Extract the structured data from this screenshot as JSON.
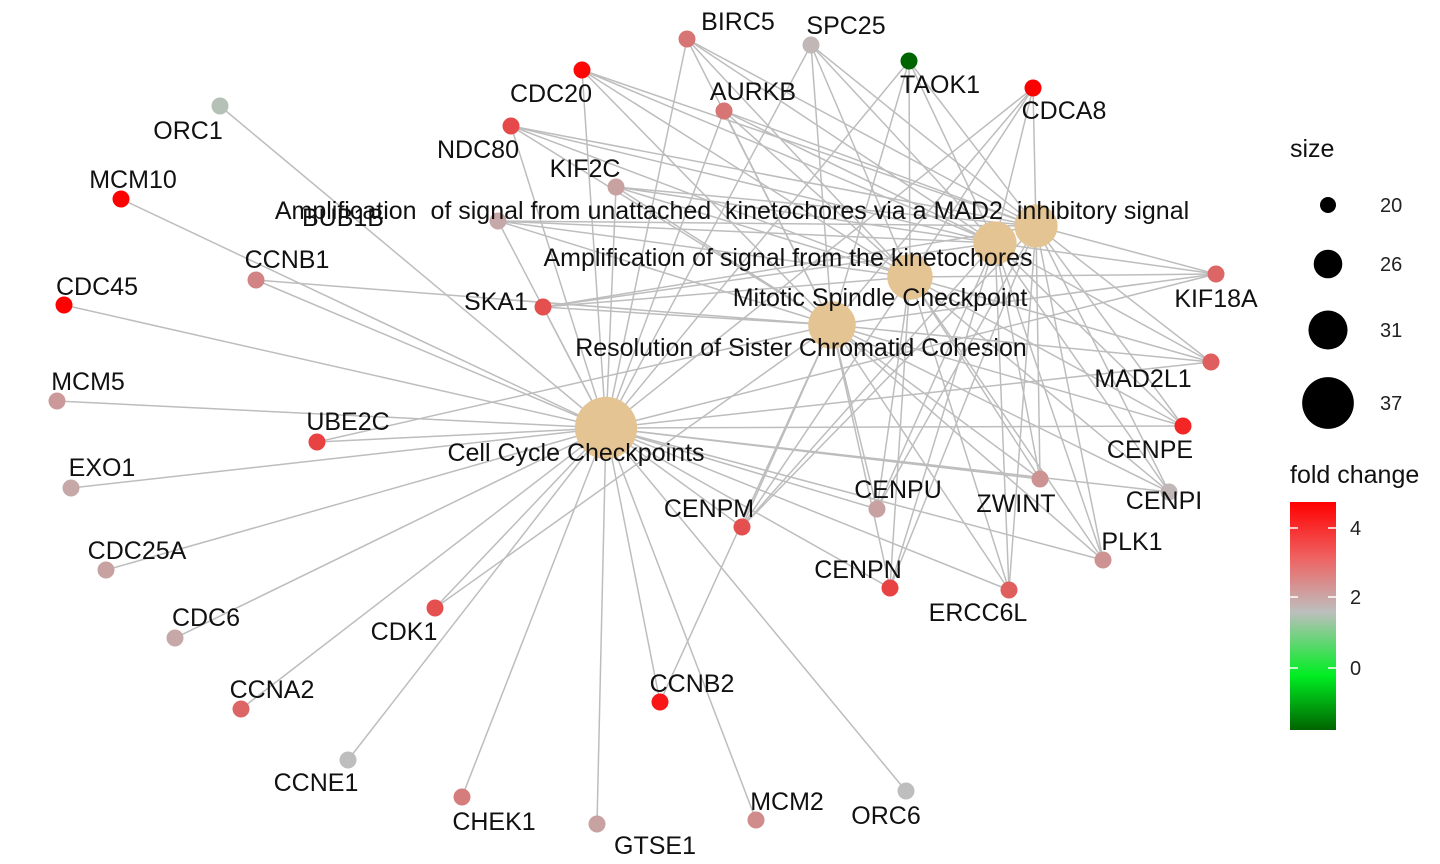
{
  "chart_data": {
    "type": "network",
    "colors": {
      "term_node": "#E5C494",
      "edge": "#BDBDBD",
      "fold_change_high": "#FF0000",
      "fold_change_mid": "#BEBEBE",
      "fold_change_zero": "#00EE22",
      "fold_change_low": "#006400"
    },
    "terms": [
      {
        "id": "t_ampunat",
        "label": "Amplification  of signal from unattached  kinetochores via a MAD2  inhibitory signal",
        "size": 33
      },
      {
        "id": "t_ampkin",
        "label": "Amplification of signal from the kinetochores",
        "size": 33
      },
      {
        "id": "t_msc",
        "label": "Mitotic Spindle Checkpoint",
        "size": 34
      },
      {
        "id": "t_rscc",
        "label": "Resolution of Sister Chromatid Cohesion",
        "size": 35
      },
      {
        "id": "t_ccc",
        "label": "Cell Cycle Checkpoints",
        "size": 42
      }
    ],
    "genes": [
      {
        "id": "BIRC5",
        "fold_change": 3.0
      },
      {
        "id": "SPC25",
        "fold_change": 2.1
      },
      {
        "id": "TAOK1",
        "fold_change": -1.8
      },
      {
        "id": "CDC20",
        "fold_change": 4.5
      },
      {
        "id": "AURKB",
        "fold_change": 3.0
      },
      {
        "id": "CDCA8",
        "fold_change": 4.6
      },
      {
        "id": "ORC1",
        "fold_change": 1.9
      },
      {
        "id": "NDC80",
        "fold_change": 3.6
      },
      {
        "id": "KIF2C",
        "fold_change": 2.4
      },
      {
        "id": "MCM10",
        "fold_change": 4.6
      },
      {
        "id": "BUB1B",
        "fold_change": 2.3
      },
      {
        "id": "CCNB1",
        "fold_change": 2.8
      },
      {
        "id": "KIF18A",
        "fold_change": 3.2
      },
      {
        "id": "CDC45",
        "fold_change": 4.8
      },
      {
        "id": "SKA1",
        "fold_change": 3.5
      },
      {
        "id": "MAD2L1",
        "fold_change": 3.3
      },
      {
        "id": "MCM5",
        "fold_change": 2.5
      },
      {
        "id": "UBE2C",
        "fold_change": 3.7
      },
      {
        "id": "CENPE",
        "fold_change": 4.1
      },
      {
        "id": "EXO1",
        "fold_change": 2.3
      },
      {
        "id": "CENPU",
        "fold_change": 2.4
      },
      {
        "id": "ZWINT",
        "fold_change": 2.6
      },
      {
        "id": "CENPI",
        "fold_change": 2.1
      },
      {
        "id": "CENPM",
        "fold_change": 3.5
      },
      {
        "id": "CDC25A",
        "fold_change": 2.4
      },
      {
        "id": "PLK1",
        "fold_change": 2.6
      },
      {
        "id": "CENPN",
        "fold_change": 3.7
      },
      {
        "id": "CDC6",
        "fold_change": 2.3
      },
      {
        "id": "ERCC6L",
        "fold_change": 3.3
      },
      {
        "id": "CDK1",
        "fold_change": 3.5
      },
      {
        "id": "CCNA2",
        "fold_change": 3.2
      },
      {
        "id": "CCNB2",
        "fold_change": 4.3
      },
      {
        "id": "CCNE1",
        "fold_change": 2.0
      },
      {
        "id": "CHEK1",
        "fold_change": 2.9
      },
      {
        "id": "MCM2",
        "fold_change": 2.7
      },
      {
        "id": "ORC6",
        "fold_change": 2.0
      },
      {
        "id": "GTSE1",
        "fold_change": 2.4
      }
    ],
    "edges": [
      [
        "t_ccc",
        "BIRC5"
      ],
      [
        "t_ccc",
        "SPC25"
      ],
      [
        "t_ccc",
        "TAOK1"
      ],
      [
        "t_ccc",
        "CDC20"
      ],
      [
        "t_ccc",
        "AURKB"
      ],
      [
        "t_ccc",
        "CDCA8"
      ],
      [
        "t_ccc",
        "ORC1"
      ],
      [
        "t_ccc",
        "NDC80"
      ],
      [
        "t_ccc",
        "KIF2C"
      ],
      [
        "t_ccc",
        "MCM10"
      ],
      [
        "t_ccc",
        "BUB1B"
      ],
      [
        "t_ccc",
        "CCNB1"
      ],
      [
        "t_ccc",
        "KIF18A"
      ],
      [
        "t_ccc",
        "CDC45"
      ],
      [
        "t_ccc",
        "SKA1"
      ],
      [
        "t_ccc",
        "MAD2L1"
      ],
      [
        "t_ccc",
        "MCM5"
      ],
      [
        "t_ccc",
        "UBE2C"
      ],
      [
        "t_ccc",
        "CENPE"
      ],
      [
        "t_ccc",
        "EXO1"
      ],
      [
        "t_ccc",
        "CENPU"
      ],
      [
        "t_ccc",
        "ZWINT"
      ],
      [
        "t_ccc",
        "CENPI"
      ],
      [
        "t_ccc",
        "CENPM"
      ],
      [
        "t_ccc",
        "CDC25A"
      ],
      [
        "t_ccc",
        "PLK1"
      ],
      [
        "t_ccc",
        "CENPN"
      ],
      [
        "t_ccc",
        "CDC6"
      ],
      [
        "t_ccc",
        "ERCC6L"
      ],
      [
        "t_ccc",
        "CDK1"
      ],
      [
        "t_ccc",
        "CCNA2"
      ],
      [
        "t_ccc",
        "CCNB2"
      ],
      [
        "t_ccc",
        "CCNE1"
      ],
      [
        "t_ccc",
        "CHEK1"
      ],
      [
        "t_ccc",
        "MCM2"
      ],
      [
        "t_ccc",
        "ORC6"
      ],
      [
        "t_ccc",
        "GTSE1"
      ],
      [
        "t_rscc",
        "BIRC5"
      ],
      [
        "t_rscc",
        "SPC25"
      ],
      [
        "t_rscc",
        "TAOK1"
      ],
      [
        "t_rscc",
        "CDC20"
      ],
      [
        "t_rscc",
        "AURKB"
      ],
      [
        "t_rscc",
        "CDCA8"
      ],
      [
        "t_rscc",
        "NDC80"
      ],
      [
        "t_rscc",
        "KIF2C"
      ],
      [
        "t_rscc",
        "BUB1B"
      ],
      [
        "t_rscc",
        "CCNB1"
      ],
      [
        "t_rscc",
        "KIF18A"
      ],
      [
        "t_rscc",
        "SKA1"
      ],
      [
        "t_rscc",
        "MAD2L1"
      ],
      [
        "t_rscc",
        "UBE2C"
      ],
      [
        "t_rscc",
        "CENPE"
      ],
      [
        "t_rscc",
        "CENPU"
      ],
      [
        "t_rscc",
        "ZWINT"
      ],
      [
        "t_rscc",
        "CENPI"
      ],
      [
        "t_rscc",
        "CENPM"
      ],
      [
        "t_rscc",
        "PLK1"
      ],
      [
        "t_rscc",
        "CENPN"
      ],
      [
        "t_rscc",
        "ERCC6L"
      ],
      [
        "t_rscc",
        "CDK1"
      ],
      [
        "t_rscc",
        "CCNB2"
      ],
      [
        "t_msc",
        "BIRC5"
      ],
      [
        "t_msc",
        "SPC25"
      ],
      [
        "t_msc",
        "TAOK1"
      ],
      [
        "t_msc",
        "CDC20"
      ],
      [
        "t_msc",
        "AURKB"
      ],
      [
        "t_msc",
        "CDCA8"
      ],
      [
        "t_msc",
        "NDC80"
      ],
      [
        "t_msc",
        "KIF2C"
      ],
      [
        "t_msc",
        "BUB1B"
      ],
      [
        "t_msc",
        "KIF18A"
      ],
      [
        "t_msc",
        "SKA1"
      ],
      [
        "t_msc",
        "MAD2L1"
      ],
      [
        "t_msc",
        "CENPE"
      ],
      [
        "t_msc",
        "CENPU"
      ],
      [
        "t_msc",
        "ZWINT"
      ],
      [
        "t_msc",
        "CENPI"
      ],
      [
        "t_msc",
        "CENPM"
      ],
      [
        "t_msc",
        "PLK1"
      ],
      [
        "t_msc",
        "CENPN"
      ],
      [
        "t_msc",
        "ERCC6L"
      ],
      [
        "t_ampkin",
        "BIRC5"
      ],
      [
        "t_ampkin",
        "SPC25"
      ],
      [
        "t_ampkin",
        "TAOK1"
      ],
      [
        "t_ampkin",
        "CDC20"
      ],
      [
        "t_ampkin",
        "AURKB"
      ],
      [
        "t_ampkin",
        "CDCA8"
      ],
      [
        "t_ampkin",
        "NDC80"
      ],
      [
        "t_ampkin",
        "KIF2C"
      ],
      [
        "t_ampkin",
        "BUB1B"
      ],
      [
        "t_ampkin",
        "KIF18A"
      ],
      [
        "t_ampkin",
        "SKA1"
      ],
      [
        "t_ampkin",
        "MAD2L1"
      ],
      [
        "t_ampkin",
        "CENPE"
      ],
      [
        "t_ampkin",
        "CENPU"
      ],
      [
        "t_ampkin",
        "ZWINT"
      ],
      [
        "t_ampkin",
        "CENPI"
      ],
      [
        "t_ampkin",
        "CENPM"
      ],
      [
        "t_ampkin",
        "PLK1"
      ],
      [
        "t_ampkin",
        "CENPN"
      ],
      [
        "t_ampkin",
        "ERCC6L"
      ],
      [
        "t_ampunat",
        "BIRC5"
      ],
      [
        "t_ampunat",
        "SPC25"
      ],
      [
        "t_ampunat",
        "TAOK1"
      ],
      [
        "t_ampunat",
        "CDC20"
      ],
      [
        "t_ampunat",
        "AURKB"
      ],
      [
        "t_ampunat",
        "CDCA8"
      ],
      [
        "t_ampunat",
        "NDC80"
      ],
      [
        "t_ampunat",
        "KIF2C"
      ],
      [
        "t_ampunat",
        "BUB1B"
      ],
      [
        "t_ampunat",
        "KIF18A"
      ],
      [
        "t_ampunat",
        "SKA1"
      ],
      [
        "t_ampunat",
        "MAD2L1"
      ],
      [
        "t_ampunat",
        "CENPE"
      ],
      [
        "t_ampunat",
        "CENPU"
      ],
      [
        "t_ampunat",
        "ZWINT"
      ],
      [
        "t_ampunat",
        "CENPI"
      ],
      [
        "t_ampunat",
        "CENPM"
      ],
      [
        "t_ampunat",
        "PLK1"
      ],
      [
        "t_ampunat",
        "CENPN"
      ],
      [
        "t_ampunat",
        "ERCC6L"
      ]
    ],
    "legend": {
      "size_title": "size",
      "size_breaks": [
        20,
        26,
        31,
        37
      ],
      "color_title": "fold change",
      "color_breaks": [
        4,
        2,
        0
      ],
      "color_range": [
        -1.8,
        4.8
      ]
    }
  }
}
